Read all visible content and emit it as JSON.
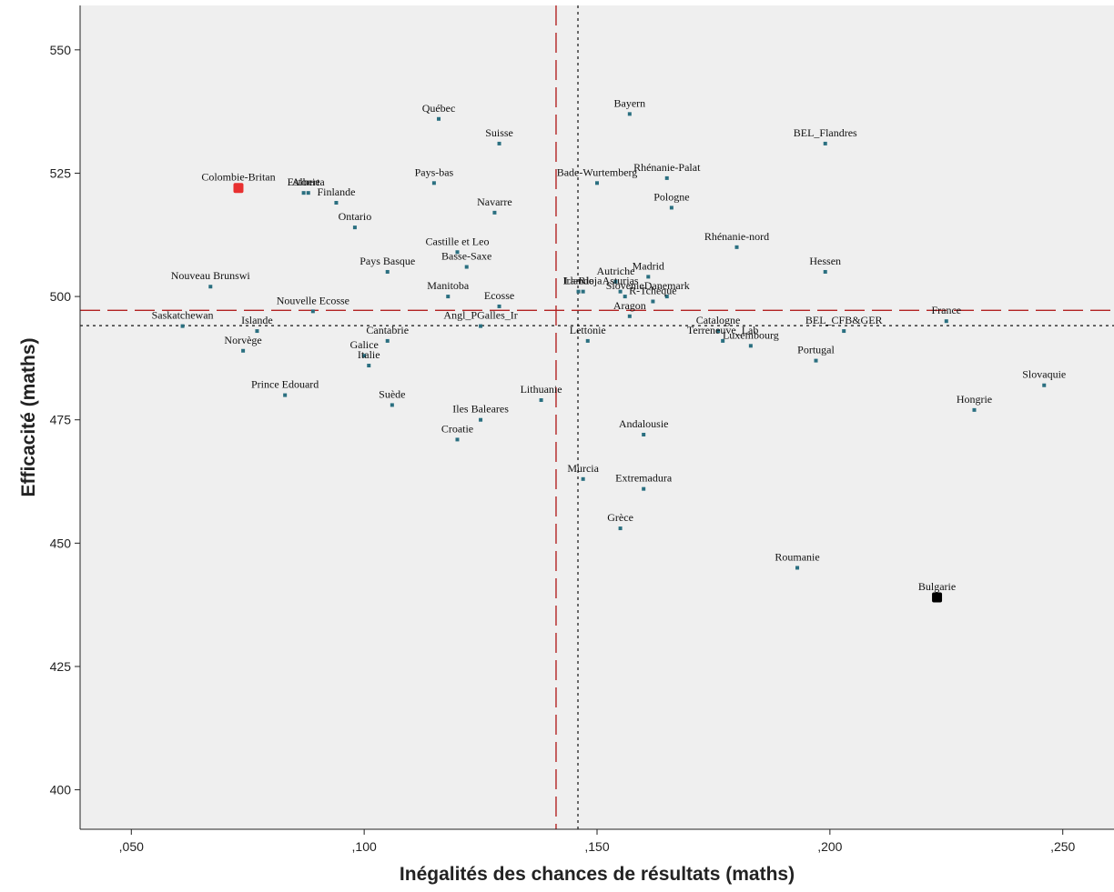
{
  "chart_data": {
    "type": "scatter",
    "xlabel": "Inégalités des chances de résultats (maths)",
    "ylabel": "Efficacité (maths)",
    "xlim": [
      0.039,
      0.261
    ],
    "ylim": [
      392,
      559
    ],
    "x_ticks": [
      {
        "value": 0.05,
        "label": ",050"
      },
      {
        "value": 0.1,
        "label": ",100"
      },
      {
        "value": 0.15,
        "label": ",150"
      },
      {
        "value": 0.2,
        "label": ",200"
      },
      {
        "value": 0.25,
        "label": ",250"
      }
    ],
    "y_ticks": [
      {
        "value": 400,
        "label": "400"
      },
      {
        "value": 425,
        "label": "425"
      },
      {
        "value": 450,
        "label": "450"
      },
      {
        "value": 475,
        "label": "475"
      },
      {
        "value": 500,
        "label": "500"
      },
      {
        "value": 525,
        "label": "525"
      },
      {
        "value": 550,
        "label": "550"
      }
    ],
    "grid": false,
    "reference_lines": [
      {
        "orientation": "vertical",
        "value": 0.1412,
        "style": "dashed",
        "color": "#b22222"
      },
      {
        "orientation": "vertical",
        "value": 0.1459,
        "style": "dotted",
        "color": "#111111"
      },
      {
        "orientation": "horizontal",
        "value": 497.2,
        "style": "dashed",
        "color": "#b22222"
      },
      {
        "orientation": "horizontal",
        "value": 494.1,
        "style": "dotted",
        "color": "#111111"
      }
    ],
    "colors": {
      "point": "#2a6f80",
      "highlight_red": "#e83030",
      "highlight_black": "#000000",
      "background": "#efefef"
    },
    "points": [
      {
        "label": "Québec",
        "x": 0.116,
        "y": 536
      },
      {
        "label": "Suisse",
        "x": 0.129,
        "y": 531
      },
      {
        "label": "Bayern",
        "x": 0.157,
        "y": 537
      },
      {
        "label": "BEL_Flandres",
        "x": 0.199,
        "y": 531
      },
      {
        "label": "Colombie-Britan",
        "x": 0.073,
        "y": 522,
        "highlight": "red"
      },
      {
        "label": "Alberta",
        "x": 0.088,
        "y": 521
      },
      {
        "label": "Estonie",
        "x": 0.087,
        "y": 521
      },
      {
        "label": "Finlande",
        "x": 0.094,
        "y": 519
      },
      {
        "label": "Ontario",
        "x": 0.098,
        "y": 514
      },
      {
        "label": "Pays-bas",
        "x": 0.115,
        "y": 523
      },
      {
        "label": "Navarre",
        "x": 0.128,
        "y": 517
      },
      {
        "label": "Bade-Wurtemberg",
        "x": 0.15,
        "y": 523
      },
      {
        "label": "Rhénanie-Palat",
        "x": 0.165,
        "y": 524
      },
      {
        "label": "Pologne",
        "x": 0.166,
        "y": 518
      },
      {
        "label": "Rhénanie-nord",
        "x": 0.18,
        "y": 510
      },
      {
        "label": "Hessen",
        "x": 0.199,
        "y": 505
      },
      {
        "label": "Castille et Leo",
        "x": 0.12,
        "y": 509
      },
      {
        "label": "Basse-Saxe",
        "x": 0.122,
        "y": 506
      },
      {
        "label": "Pays Basque",
        "x": 0.105,
        "y": 505
      },
      {
        "label": "Nouveau Brunswi",
        "x": 0.067,
        "y": 502
      },
      {
        "label": "Manitoba",
        "x": 0.118,
        "y": 500
      },
      {
        "label": "Ecosse",
        "x": 0.129,
        "y": 498
      },
      {
        "label": "Nouvelle Ecosse",
        "x": 0.089,
        "y": 497
      },
      {
        "label": "Asturias",
        "x": 0.155,
        "y": 501
      },
      {
        "label": "Autriche",
        "x": 0.154,
        "y": 503
      },
      {
        "label": "Madrid",
        "x": 0.161,
        "y": 504
      },
      {
        "label": "La Rioja",
        "x": 0.147,
        "y": 501
      },
      {
        "label": "Irlande",
        "x": 0.146,
        "y": 501
      },
      {
        "label": "Slovenie",
        "x": 0.156,
        "y": 500
      },
      {
        "label": "Danemark",
        "x": 0.165,
        "y": 500
      },
      {
        "label": "R-Tchèque",
        "x": 0.162,
        "y": 499
      },
      {
        "label": "Saskatchewan",
        "x": 0.061,
        "y": 494
      },
      {
        "label": "Islande",
        "x": 0.077,
        "y": 493
      },
      {
        "label": "Cantabrie",
        "x": 0.105,
        "y": 491
      },
      {
        "label": "Angl_PGalles_Ir",
        "x": 0.125,
        "y": 494
      },
      {
        "label": "Lettonie",
        "x": 0.148,
        "y": 491
      },
      {
        "label": "Aragon",
        "x": 0.157,
        "y": 496
      },
      {
        "label": "Terreneuve_Lab",
        "x": 0.177,
        "y": 491
      },
      {
        "label": "Catalogne",
        "x": 0.176,
        "y": 493
      },
      {
        "label": "BEL_CFB&GER",
        "x": 0.203,
        "y": 493
      },
      {
        "label": "France",
        "x": 0.225,
        "y": 495
      },
      {
        "label": "Norvège",
        "x": 0.074,
        "y": 489
      },
      {
        "label": "Galice",
        "x": 0.1,
        "y": 488
      },
      {
        "label": "Italie",
        "x": 0.101,
        "y": 486
      },
      {
        "label": "Luxembourg",
        "x": 0.183,
        "y": 490
      },
      {
        "label": "Portugal",
        "x": 0.197,
        "y": 487
      },
      {
        "label": "Prince Edouard",
        "x": 0.083,
        "y": 480
      },
      {
        "label": "Suède",
        "x": 0.106,
        "y": 478
      },
      {
        "label": "Lithuanie",
        "x": 0.138,
        "y": 479
      },
      {
        "label": "Iles Baleares",
        "x": 0.125,
        "y": 475
      },
      {
        "label": "Croatie",
        "x": 0.12,
        "y": 471
      },
      {
        "label": "Slovaquie",
        "x": 0.246,
        "y": 482
      },
      {
        "label": "Hongrie",
        "x": 0.231,
        "y": 477
      },
      {
        "label": "Andalousie",
        "x": 0.16,
        "y": 472
      },
      {
        "label": "Murcia",
        "x": 0.147,
        "y": 463
      },
      {
        "label": "Extremadura",
        "x": 0.16,
        "y": 461
      },
      {
        "label": "Grèce",
        "x": 0.155,
        "y": 453
      },
      {
        "label": "Roumanie",
        "x": 0.193,
        "y": 445
      },
      {
        "label": "Bulgarie",
        "x": 0.223,
        "y": 439,
        "highlight": "black"
      }
    ]
  }
}
